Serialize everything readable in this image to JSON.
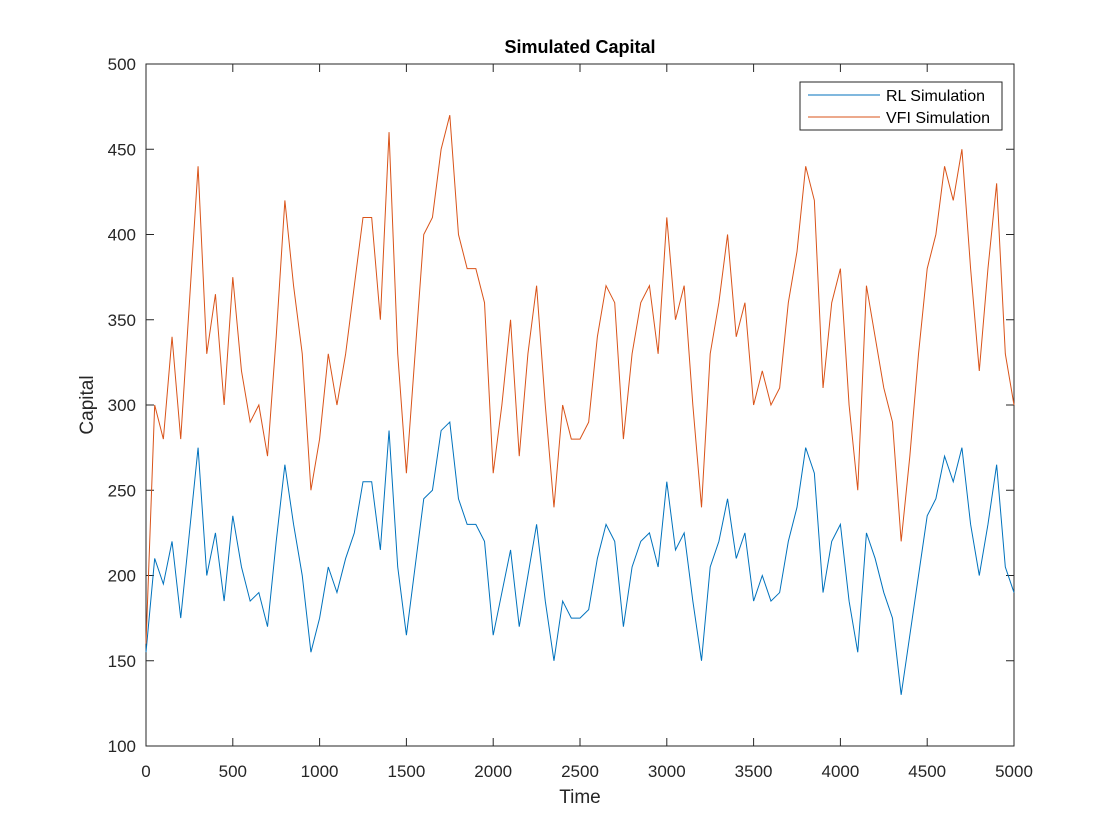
{
  "chart_data": {
    "type": "line",
    "title": "Simulated Capital",
    "xlabel": "Time",
    "ylabel": "Capital",
    "x": [
      0,
      50,
      100,
      150,
      200,
      250,
      300,
      350,
      400,
      450,
      500,
      550,
      600,
      650,
      700,
      750,
      800,
      850,
      900,
      950,
      1000,
      1050,
      1100,
      1150,
      1200,
      1250,
      1300,
      1350,
      1400,
      1450,
      1500,
      1550,
      1600,
      1650,
      1700,
      1750,
      1800,
      1850,
      1900,
      1950,
      2000,
      2050,
      2100,
      2150,
      2200,
      2250,
      2300,
      2350,
      2400,
      2450,
      2500,
      2550,
      2600,
      2650,
      2700,
      2750,
      2800,
      2850,
      2900,
      2950,
      3000,
      3050,
      3100,
      3150,
      3200,
      3250,
      3300,
      3350,
      3400,
      3450,
      3500,
      3550,
      3600,
      3650,
      3700,
      3750,
      3800,
      3850,
      3900,
      3950,
      4000,
      4050,
      4100,
      4150,
      4200,
      4250,
      4300,
      4350,
      4400,
      4450,
      4500,
      4550,
      4600,
      4650,
      4700,
      4750,
      4800,
      4850,
      4900,
      4950,
      5000
    ],
    "series": [
      {
        "name": "RL Simulation",
        "color": "#0072BD",
        "values": [
          155,
          210,
          195,
          220,
          175,
          225,
          275,
          200,
          225,
          185,
          235,
          205,
          185,
          190,
          170,
          220,
          265,
          230,
          200,
          155,
          175,
          205,
          190,
          210,
          225,
          255,
          255,
          215,
          285,
          205,
          165,
          205,
          245,
          250,
          285,
          290,
          245,
          230,
          230,
          220,
          165,
          190,
          215,
          170,
          200,
          230,
          185,
          150,
          185,
          175,
          175,
          180,
          210,
          230,
          220,
          170,
          205,
          220,
          225,
          205,
          255,
          215,
          225,
          185,
          150,
          205,
          220,
          245,
          210,
          225,
          185,
          200,
          185,
          190,
          220,
          240,
          275,
          260,
          190,
          220,
          230,
          185,
          155,
          225,
          210,
          190,
          175,
          130,
          165,
          200,
          235,
          245,
          270,
          255,
          275,
          230,
          200,
          230,
          265,
          205,
          190
        ]
      },
      {
        "name": "VFI Simulation",
        "color": "#D95319",
        "values": [
          160,
          300,
          280,
          340,
          280,
          360,
          440,
          330,
          365,
          300,
          375,
          320,
          290,
          300,
          270,
          340,
          420,
          370,
          330,
          250,
          280,
          330,
          300,
          330,
          370,
          410,
          410,
          350,
          460,
          330,
          260,
          330,
          400,
          410,
          450,
          470,
          400,
          380,
          380,
          360,
          260,
          300,
          350,
          270,
          330,
          370,
          300,
          240,
          300,
          280,
          280,
          290,
          340,
          370,
          360,
          280,
          330,
          360,
          370,
          330,
          410,
          350,
          370,
          300,
          240,
          330,
          360,
          400,
          340,
          360,
          300,
          320,
          300,
          310,
          360,
          390,
          440,
          420,
          310,
          360,
          380,
          300,
          250,
          370,
          340,
          310,
          290,
          220,
          270,
          330,
          380,
          400,
          440,
          420,
          450,
          380,
          320,
          380,
          430,
          330,
          300
        ]
      }
    ],
    "xlim": [
      0,
      5000
    ],
    "xticks": [
      0,
      500,
      1000,
      1500,
      2000,
      2500,
      3000,
      3500,
      4000,
      4500,
      5000
    ],
    "ylim": [
      100,
      500
    ],
    "yticks": [
      100,
      150,
      200,
      250,
      300,
      350,
      400,
      450,
      500
    ],
    "legend": "top-right"
  }
}
